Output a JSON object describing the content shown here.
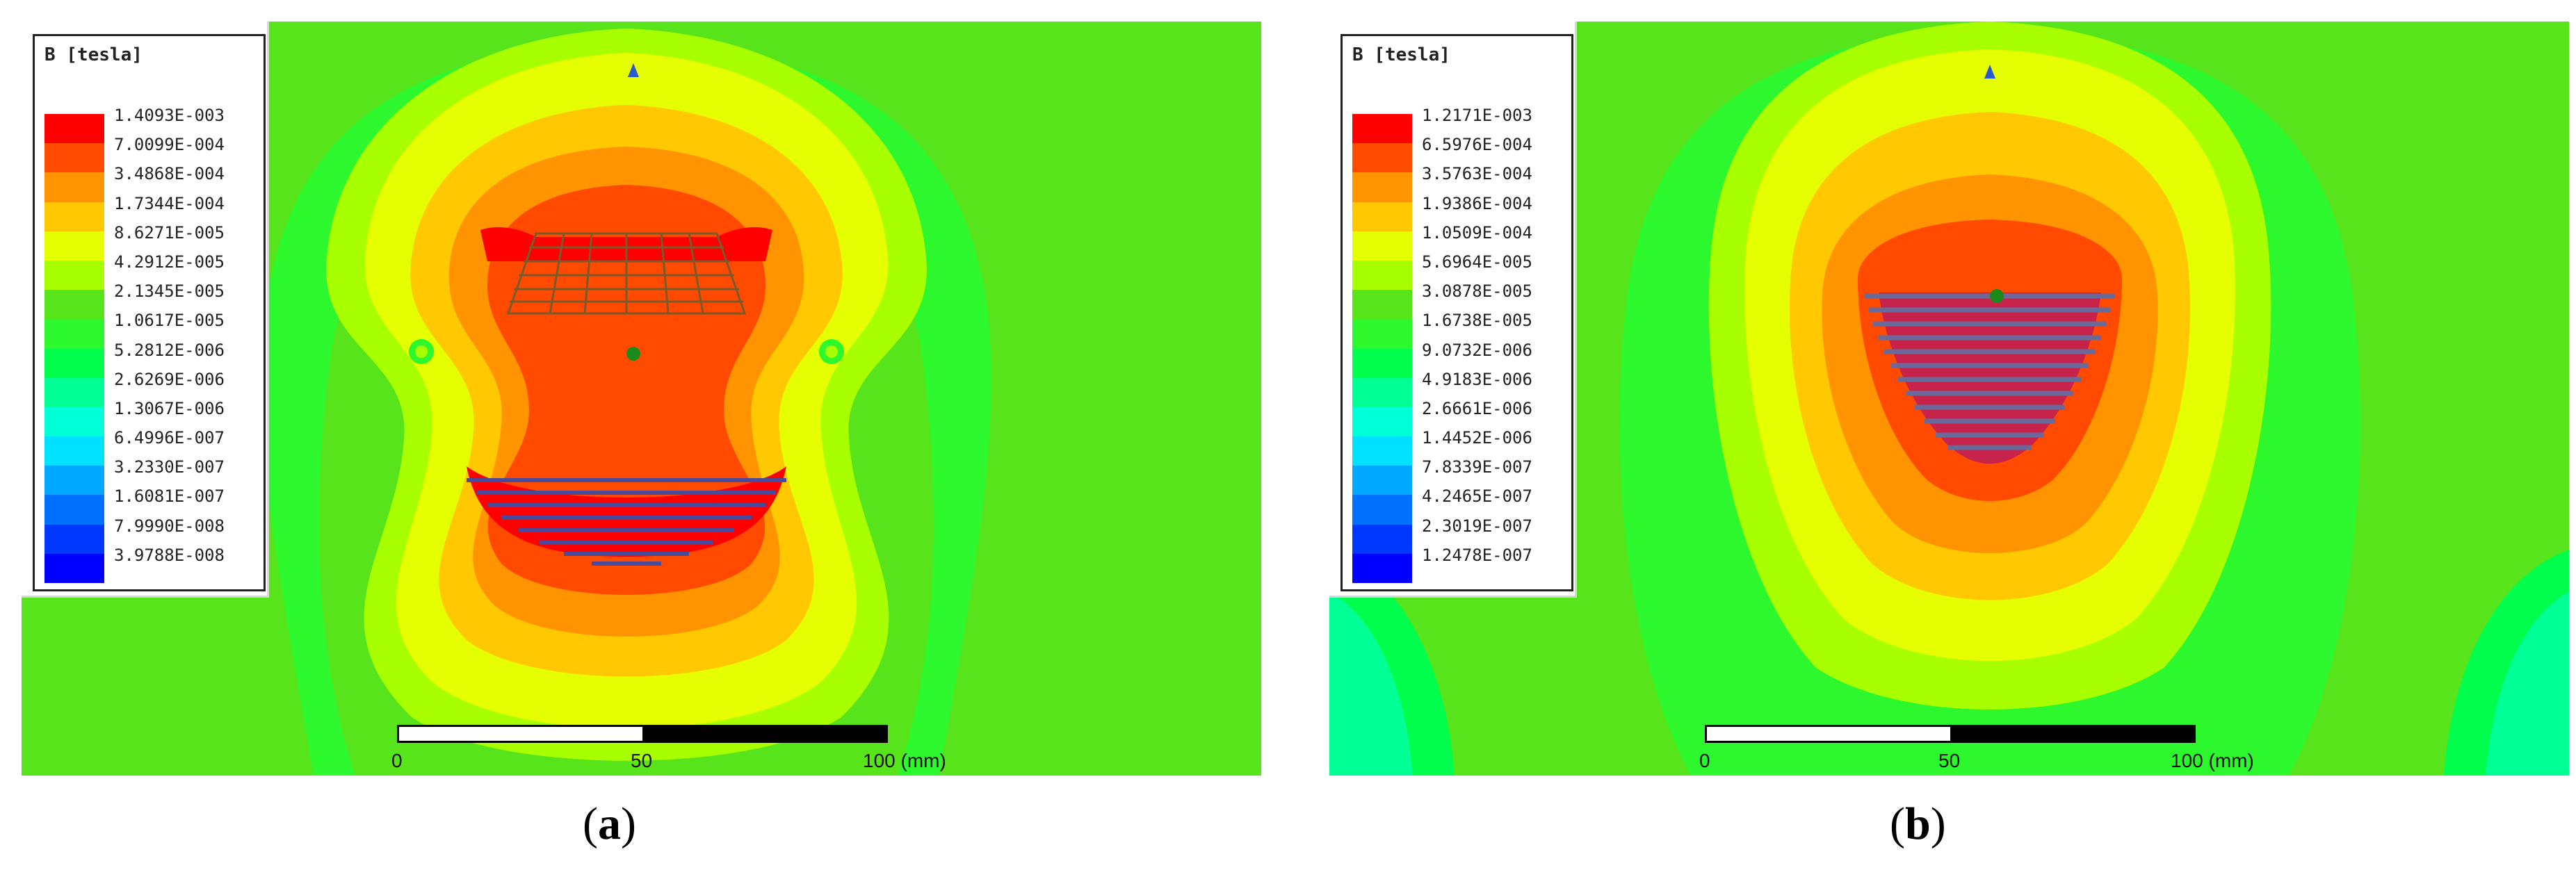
{
  "panels": [
    {
      "id": "a",
      "caption_open": "(",
      "caption_letter": "a",
      "caption_close": ")",
      "legend_title": "B [tesla]",
      "legend_values": [
        "1.4093E-003",
        "7.0099E-004",
        "3.4868E-004",
        "1.7344E-004",
        "8.6271E-005",
        "4.2912E-005",
        "2.1345E-005",
        "1.0617E-005",
        "5.2812E-006",
        "2.6269E-006",
        "1.3067E-006",
        "6.4996E-007",
        "3.2330E-007",
        "1.6081E-007",
        "7.9990E-008",
        "3.9788E-008"
      ],
      "scale_labels": [
        "0",
        "50",
        "100 (mm)"
      ]
    },
    {
      "id": "b",
      "caption_open": "(",
      "caption_letter": "b",
      "caption_close": ")",
      "legend_title": "B [tesla]",
      "legend_values": [
        "1.2171E-003",
        "6.5976E-004",
        "3.5763E-004",
        "1.9386E-004",
        "1.0509E-004",
        "5.6964E-005",
        "3.0878E-005",
        "1.6738E-005",
        "9.0732E-006",
        "4.9183E-006",
        "2.6661E-006",
        "1.4452E-006",
        "7.8339E-007",
        "4.2465E-007",
        "2.3019E-007",
        "1.2478E-007"
      ],
      "scale_labels": [
        "0",
        "50",
        "100 (mm)"
      ]
    }
  ],
  "colormap": [
    "#ff0000",
    "#ff4a00",
    "#ff9400",
    "#ffc800",
    "#e6ff00",
    "#a8ff00",
    "#58e41a",
    "#2df72d",
    "#00ff4c",
    "#00ff94",
    "#00ffd6",
    "#00e0ff",
    "#00a8ff",
    "#0070ff",
    "#0038ff",
    "#0000ff"
  ]
}
